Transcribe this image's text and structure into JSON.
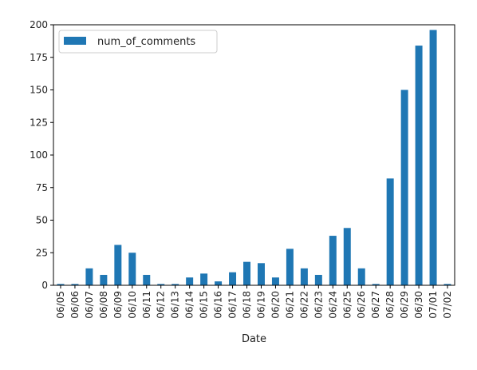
{
  "chart_data": {
    "type": "bar",
    "xlabel": "Date",
    "ylabel": "",
    "ylim": [
      0,
      200
    ],
    "yticks": [
      0,
      25,
      50,
      75,
      100,
      125,
      150,
      175,
      200
    ],
    "grid": false,
    "legend_position": "top-left",
    "categories": [
      "06/05",
      "06/06",
      "06/07",
      "06/08",
      "06/09",
      "06/10",
      "06/11",
      "06/12",
      "06/13",
      "06/14",
      "06/15",
      "06/16",
      "06/17",
      "06/18",
      "06/19",
      "06/20",
      "06/21",
      "06/22",
      "06/23",
      "06/24",
      "06/25",
      "06/26",
      "06/27",
      "06/28",
      "06/29",
      "06/30",
      "07/01",
      "07/02"
    ],
    "series": [
      {
        "name": "num_of_comments",
        "color": "#1f77b4",
        "values": [
          1,
          1,
          13,
          8,
          31,
          25,
          8,
          1,
          1,
          6,
          9,
          3,
          10,
          18,
          17,
          6,
          28,
          13,
          8,
          38,
          44,
          13,
          1,
          82,
          150,
          184,
          196,
          1
        ]
      }
    ]
  }
}
